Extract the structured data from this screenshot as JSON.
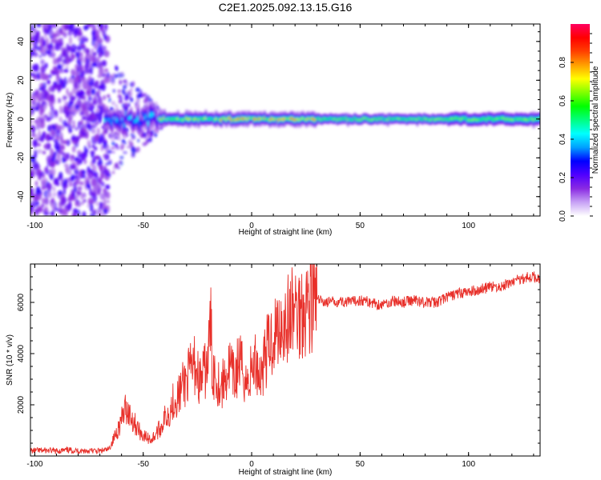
{
  "title": "C2E1.2025.092.13.15.G16",
  "chart_data": [
    {
      "type": "heatmap",
      "xlabel": "Height of straight line (km)",
      "ylabel": "Frequency (Hz)",
      "xlim": [
        -102,
        133
      ],
      "ylim": [
        -50,
        49
      ],
      "xticks": [
        -100,
        -50,
        0,
        50,
        100
      ],
      "yticks": [
        -40,
        -20,
        0,
        20,
        40
      ],
      "colorbar": {
        "label": "Normalized spectral amplitude",
        "range": [
          0.0,
          1.0
        ],
        "ticks": [
          0.0,
          0.2,
          0.4,
          0.6,
          0.8
        ],
        "colors": [
          "#ffffff",
          "#c7a2f5",
          "#8a2be2",
          "#5000ff",
          "#0000ff",
          "#00a0ff",
          "#00ffff",
          "#00ff80",
          "#00ff00",
          "#80ff00",
          "#ffff00",
          "#ffa000",
          "#ff4000",
          "#ff0000",
          "#ff0060"
        ]
      },
      "ridge": {
        "description": "",
        "center_frequency_hz": 0
      }
    },
    {
      "type": "line",
      "xlabel": "Height of straight line (km)",
      "ylabel": "SNR (10 * v/v)",
      "xlim": [
        -102,
        133
      ],
      "ylim": [
        0,
        7500
      ],
      "xticks": [
        -100,
        -50,
        0,
        50,
        100
      ],
      "yticks": [
        2000,
        4000,
        6000
      ],
      "line_color": "#e8302a",
      "x": [
        -102,
        -95,
        -90,
        -85,
        -80,
        -75,
        -70,
        -66,
        -64,
        -62,
        -60,
        -58,
        -56,
        -54,
        -52,
        -50,
        -48,
        -46,
        -44,
        -42,
        -40,
        -38,
        -36,
        -34,
        -32,
        -30,
        -28,
        -26,
        -24,
        -22,
        -20,
        -19,
        -18,
        -17,
        -16,
        -14,
        -12,
        -10,
        -8,
        -6,
        -4,
        -2,
        0,
        2,
        4,
        6,
        8,
        10,
        12,
        14,
        16,
        18,
        20,
        22,
        24,
        26,
        28,
        30,
        35,
        40,
        45,
        50,
        55,
        60,
        65,
        70,
        75,
        80,
        85,
        90,
        95,
        100,
        105,
        110,
        115,
        120,
        125,
        130,
        133
      ],
      "y": [
        200,
        220,
        190,
        230,
        200,
        210,
        190,
        250,
        600,
        1000,
        1400,
        1900,
        1600,
        1300,
        1000,
        800,
        700,
        650,
        900,
        1100,
        1500,
        1700,
        2200,
        2300,
        2700,
        3000,
        3300,
        3600,
        2900,
        3200,
        3700,
        5400,
        3200,
        3400,
        3000,
        2700,
        3100,
        3500,
        2900,
        3700,
        3300,
        2800,
        3400,
        3700,
        3100,
        3900,
        4300,
        4700,
        5000,
        5300,
        5200,
        5500,
        5700,
        5600,
        5900,
        6000,
        6200,
        6100,
        6000,
        6050,
        6000,
        6100,
        6000,
        5900,
        6050,
        6000,
        6100,
        6000,
        6000,
        6200,
        6350,
        6400,
        6500,
        6600,
        6600,
        6800,
        6950,
        7000,
        6950
      ]
    }
  ]
}
